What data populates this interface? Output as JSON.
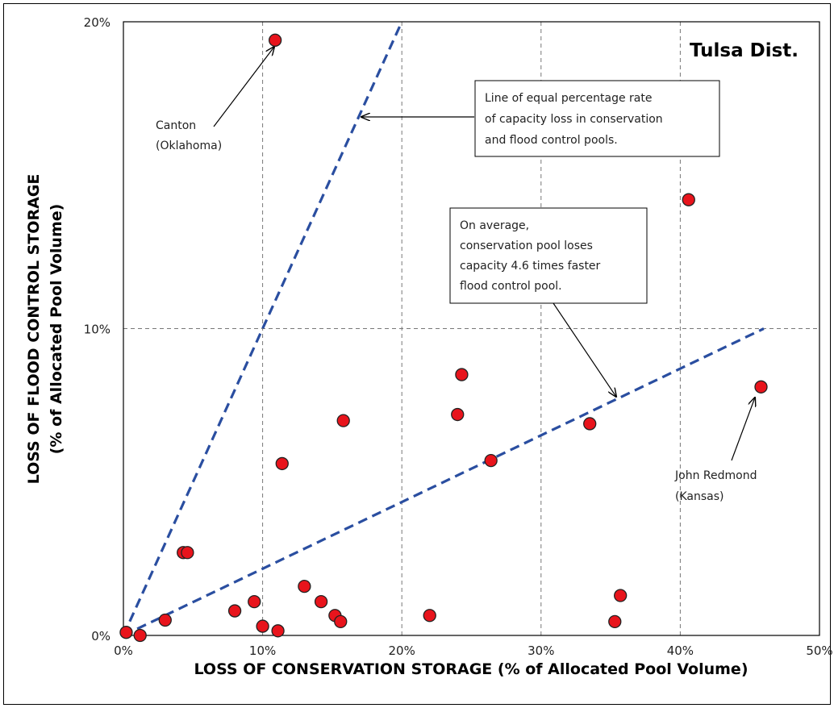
{
  "chart_data": {
    "type": "scatter",
    "title": "Tulsa Dist.",
    "xlabel": "LOSS OF CONSERVATION STORAGE (% of Allocated Pool Volume)",
    "ylabel_line1": "LOSS OF FLOOD CONTROL  STORAGE",
    "ylabel_line2": "(% of Allocated Pool Volume)",
    "xlim": [
      0,
      50
    ],
    "ylim": [
      0,
      20
    ],
    "x_ticks": [
      0,
      10,
      20,
      30,
      40,
      50
    ],
    "x_tick_labels": [
      "0%",
      "10%",
      "20%",
      "30%",
      "40%",
      "50%"
    ],
    "y_ticks": [
      0,
      10,
      20
    ],
    "y_tick_labels": [
      "0%",
      "10%",
      "20%"
    ],
    "grid": true,
    "marker_color": "#e8141c",
    "line_color": "#2a4ea0",
    "points": [
      {
        "x": 0.2,
        "y": 0.1
      },
      {
        "x": 1.2,
        "y": 0.0
      },
      {
        "x": 3.0,
        "y": 0.5
      },
      {
        "x": 4.3,
        "y": 2.7
      },
      {
        "x": 4.6,
        "y": 2.7
      },
      {
        "x": 8.0,
        "y": 0.8
      },
      {
        "x": 9.4,
        "y": 1.1
      },
      {
        "x": 10.0,
        "y": 0.3
      },
      {
        "x": 10.9,
        "y": 19.4
      },
      {
        "x": 11.1,
        "y": 0.15
      },
      {
        "x": 11.4,
        "y": 5.6
      },
      {
        "x": 13.0,
        "y": 1.6
      },
      {
        "x": 14.2,
        "y": 1.1
      },
      {
        "x": 15.2,
        "y": 0.65
      },
      {
        "x": 15.6,
        "y": 0.45
      },
      {
        "x": 15.8,
        "y": 7.0
      },
      {
        "x": 22.0,
        "y": 0.65
      },
      {
        "x": 24.0,
        "y": 7.2
      },
      {
        "x": 24.3,
        "y": 8.5
      },
      {
        "x": 26.4,
        "y": 5.7
      },
      {
        "x": 33.5,
        "y": 6.9
      },
      {
        "x": 35.3,
        "y": 0.45
      },
      {
        "x": 35.7,
        "y": 1.3
      },
      {
        "x": 40.6,
        "y": 14.2
      },
      {
        "x": 45.8,
        "y": 8.1
      }
    ],
    "lines": [
      {
        "x1": 0,
        "y1": 0,
        "x2": 20,
        "y2": 20
      },
      {
        "x1": 0,
        "y1": 0,
        "x2": 46,
        "y2": 10
      }
    ],
    "annotations": {
      "canton_line1": "Canton",
      "canton_line2": "(Oklahoma)",
      "redmond_line1": "John Redmond",
      "redmond_line2": "(Kansas)",
      "equal_line1": "Line of equal percentage rate",
      "equal_line2": "of capacity loss in conservation",
      "equal_line3": "and flood control pools.",
      "avg_line1": "On average,",
      "avg_line2": "conservation pool loses",
      "avg_line3": "capacity 4.6 times faster",
      "avg_line4": "flood control pool."
    }
  }
}
